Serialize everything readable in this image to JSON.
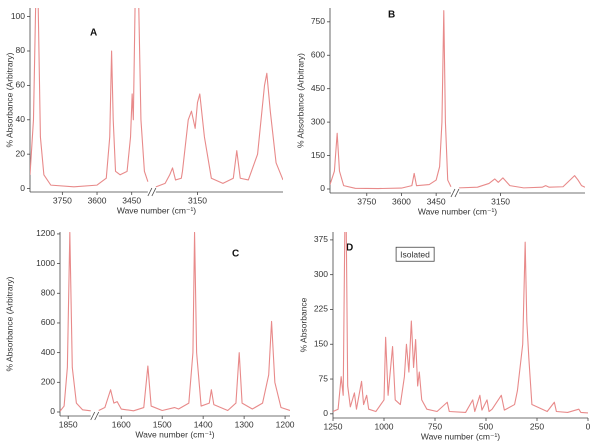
{
  "chart_data": [
    {
      "type": "line",
      "title": "A",
      "ylabel": "% Absorbance (Arbitrary)",
      "xlabel": "Wave number (cm⁻¹)",
      "color": "#e88a8a",
      "xlim": [
        [
          3890,
          3380
        ],
        [
          3330,
          2780
        ]
      ],
      "xticks": [
        3750,
        3600,
        3450,
        3150
      ],
      "ylim": [
        -2,
        105
      ],
      "yticks": [
        0,
        20,
        40,
        60,
        80,
        100
      ],
      "x": [
        3890,
        3875,
        3865,
        3855,
        3845,
        3830,
        3800,
        3700,
        3600,
        3560,
        3545,
        3537,
        3530,
        3520,
        3500,
        3470,
        3455,
        3448,
        3443,
        3435,
        3420,
        3410,
        3395,
        3380,
        null,
        3330,
        3290,
        3270,
        3258,
        3245,
        3220,
        3215,
        3190,
        3176,
        3160,
        3150,
        3140,
        3120,
        3090,
        3040,
        2995,
        2980,
        2965,
        2930,
        2890,
        2860,
        2850,
        2835,
        2810,
        2780
      ],
      "values": [
        8,
        40,
        110,
        110,
        30,
        8,
        2,
        1,
        2,
        6,
        30,
        80,
        40,
        10,
        8,
        10,
        30,
        55,
        40,
        110,
        110,
        40,
        10,
        4,
        null,
        1,
        3,
        8,
        12,
        5,
        6,
        10,
        40,
        45,
        35,
        50,
        55,
        30,
        6,
        3,
        6,
        22,
        6,
        5,
        20,
        60,
        67,
        45,
        15,
        5
      ]
    },
    {
      "type": "line",
      "title": "B",
      "ylabel": "% Absorbance (Arbitrary)",
      "xlabel": "Wave number (cm⁻¹)",
      "color": "#e88a8a",
      "xlim": [
        [
          3909,
          3386
        ],
        [
          3330,
          2785
        ]
      ],
      "xticks": [
        3750,
        3600,
        3450,
        3150
      ],
      "ylim": [
        -18,
        812
      ],
      "yticks": [
        0,
        150,
        300,
        450,
        600,
        750
      ],
      "x": [
        3909,
        3890,
        3878,
        3868,
        3850,
        3800,
        3700,
        3600,
        3555,
        3545,
        3535,
        3480,
        3450,
        3435,
        3425,
        3417,
        3410,
        3400,
        3386,
        null,
        3330,
        3250,
        3200,
        3175,
        3160,
        3140,
        3110,
        3050,
        2970,
        2955,
        2940,
        2880,
        2845,
        2830,
        2815,
        2800,
        2785
      ],
      "values": [
        20,
        80,
        250,
        80,
        15,
        3,
        2,
        4,
        15,
        70,
        15,
        20,
        40,
        100,
        300,
        800,
        300,
        40,
        10,
        null,
        5,
        8,
        25,
        45,
        30,
        50,
        15,
        5,
        8,
        15,
        8,
        10,
        45,
        60,
        40,
        15,
        8
      ]
    },
    {
      "type": "line",
      "title": "C",
      "ylabel": "% Absorbance (Arbitrary)",
      "xlabel": "Wave number (cm⁻¹)",
      "color": "#e88a8a",
      "xlim": [
        [
          1870,
          1795
        ],
        [
          1655,
          1188
        ]
      ],
      "xticks": [
        1850,
        1600,
        1500,
        1400,
        1300,
        1200
      ],
      "ylim": [
        -27,
        1213
      ],
      "yticks": [
        0,
        200,
        400,
        600,
        800,
        1000,
        1200
      ],
      "x": [
        1870,
        1860,
        1852,
        1846,
        1840,
        1830,
        1815,
        1795,
        null,
        1655,
        1640,
        1626,
        1618,
        1610,
        1600,
        1570,
        1545,
        1535,
        1527,
        1500,
        1470,
        1460,
        1435,
        1425,
        1421,
        1416,
        1405,
        1385,
        1380,
        1374,
        1340,
        1320,
        1312,
        1305,
        1280,
        1255,
        1240,
        1233,
        1225,
        1210,
        1188
      ],
      "values": [
        5,
        40,
        300,
        1210,
        300,
        60,
        15,
        8,
        null,
        10,
        30,
        150,
        60,
        70,
        20,
        8,
        30,
        310,
        40,
        10,
        30,
        20,
        60,
        400,
        1210,
        400,
        40,
        60,
        150,
        50,
        10,
        60,
        400,
        60,
        20,
        60,
        250,
        610,
        200,
        30,
        10
      ]
    },
    {
      "type": "line",
      "title": "D",
      "ylabel": "% Absorbance",
      "xlabel": "Wave number (cm⁻¹)",
      "annotation": "Isolated",
      "color": "#e88a8a",
      "xlim": [
        1250,
        0
      ],
      "xticks": [
        1250,
        1000,
        750,
        500,
        250,
        0
      ],
      "ylim": [
        -9,
        392
      ],
      "yticks": [
        0,
        75,
        150,
        225,
        300,
        375
      ],
      "x": [
        1250,
        1225,
        1210,
        1200,
        1192,
        1185,
        1178,
        1165,
        1145,
        1135,
        1110,
        1100,
        1085,
        1075,
        1040,
        1000,
        992,
        980,
        958,
        945,
        920,
        900,
        890,
        878,
        866,
        855,
        845,
        835,
        827,
        815,
        790,
        740,
        690,
        680,
        600,
        565,
        555,
        530,
        520,
        495,
        485,
        470,
        425,
        410,
        360,
        346,
        320,
        308,
        300,
        290,
        275,
        200,
        165,
        155,
        100,
        45,
        35,
        0
      ],
      "values": [
        5,
        10,
        80,
        40,
        400,
        400,
        60,
        15,
        45,
        10,
        70,
        20,
        40,
        10,
        5,
        30,
        165,
        40,
        145,
        30,
        20,
        80,
        150,
        90,
        200,
        100,
        160,
        60,
        90,
        30,
        10,
        5,
        25,
        5,
        3,
        30,
        5,
        40,
        8,
        30,
        5,
        10,
        40,
        8,
        20,
        50,
        150,
        370,
        200,
        120,
        20,
        5,
        25,
        5,
        3,
        10,
        3,
        2
      ]
    }
  ]
}
